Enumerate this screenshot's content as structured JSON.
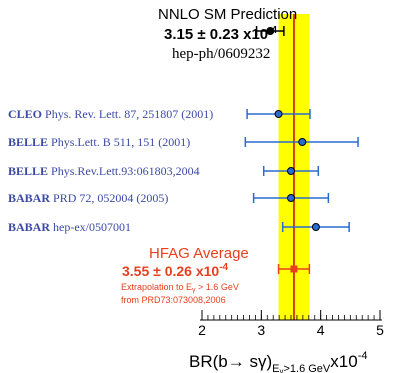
{
  "chart_data": {
    "type": "scatter",
    "xlim": [
      2,
      5
    ],
    "x_ticks": [
      "2",
      "3",
      "4",
      "5"
    ],
    "xlabel": {
      "main": "BR(b",
      "arrow": "→",
      "main2": " sγ)",
      "sub": "E",
      "sub2": "γ",
      "sub3": ">1.6 GeV",
      "factor": "x10",
      "factor_exp": "-4"
    },
    "band": {
      "center": 3.55,
      "half_width": 0.26,
      "color": "#ffff00",
      "line_color": "#cc0000"
    },
    "theory": {
      "title": "NNLO SM Prediction",
      "value_text": "3.15 ± 0.23 x10",
      "value_exp": "-4",
      "ref": "hep-ph/0609232",
      "value": 3.15,
      "err": 0.23,
      "color": "#000000"
    },
    "measurements": [
      {
        "experiment": "CLEO",
        "reference": "Phys. Rev. Lett. 87, 251807 (2001)",
        "value": 3.29,
        "err_lo": 0.53,
        "err_hi": 0.53,
        "color": "#2a6bd1"
      },
      {
        "experiment": "BELLE",
        "reference": "Phys.Lett. B 511, 151 (2001)",
        "value": 3.69,
        "err_lo": 0.96,
        "err_hi": 0.94,
        "color": "#2a6bd1"
      },
      {
        "experiment": "BELLE",
        "reference": "Phys.Rev.Lett.93:061803,2004",
        "value": 3.5,
        "err_lo": 0.46,
        "err_hi": 0.46,
        "color": "#2a6bd1"
      },
      {
        "experiment": "BABAR",
        "reference": "PRD 72, 052004 (2005)",
        "value": 3.5,
        "err_lo": 0.63,
        "err_hi": 0.63,
        "color": "#2a6bd1"
      },
      {
        "experiment": "BABAR",
        "reference": "hep-ex/0507001",
        "value": 3.92,
        "err_lo": 0.56,
        "err_hi": 0.56,
        "color": "#2a6bd1"
      }
    ],
    "average": {
      "title": "HFAG Average",
      "value_text": "3.55 ± 0.26 x10",
      "value_exp": "-4",
      "note1_pre": "Extrapolation to E",
      "note1_sub": "γ",
      "note1_post": " > 1.6 GeV",
      "note2": "from PRD73:073008,2006",
      "value": 3.55,
      "err": 0.26,
      "color": "#e8401c"
    }
  }
}
